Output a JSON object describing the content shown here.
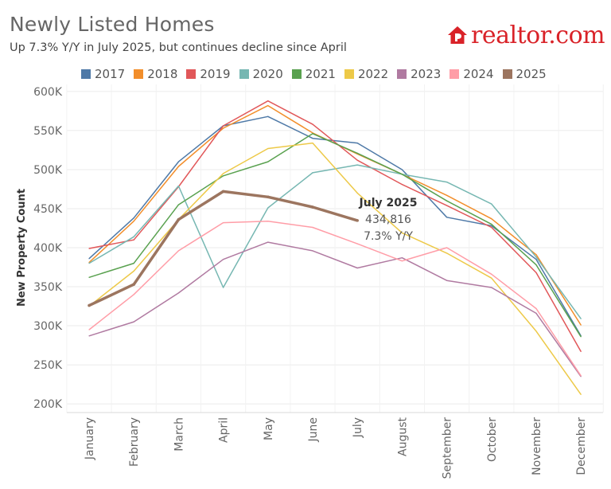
{
  "header": {
    "title": "Newly Listed Homes",
    "subtitle": "Up 7.3% Y/Y in July 2025, but continues decline since April",
    "logo_text": "realtor.com"
  },
  "colors": {
    "brand": "#d92228"
  },
  "chart_data": {
    "type": "line",
    "ylabel": "New Property Count",
    "ylim": [
      200000,
      600000
    ],
    "yticks": [
      {
        "value": 200000,
        "label": "200K"
      },
      {
        "value": 250000,
        "label": "250K"
      },
      {
        "value": 300000,
        "label": "300K"
      },
      {
        "value": 350000,
        "label": "350K"
      },
      {
        "value": 400000,
        "label": "400K"
      },
      {
        "value": 450000,
        "label": "450K"
      },
      {
        "value": 500000,
        "label": "500K"
      },
      {
        "value": 550000,
        "label": "550K"
      },
      {
        "value": 600000,
        "label": "600K"
      }
    ],
    "categories": [
      "January",
      "February",
      "March",
      "April",
      "May",
      "June",
      "July",
      "August",
      "September",
      "October",
      "November",
      "December"
    ],
    "series": [
      {
        "name": "2017",
        "color": "#4e79a7",
        "values": [
          386000,
          438000,
          510000,
          556000,
          568000,
          540000,
          534000,
          500000,
          439000,
          428000,
          385000,
          287000
        ]
      },
      {
        "name": "2018",
        "color": "#f28e2b",
        "values": [
          381000,
          434000,
          504000,
          553000,
          582000,
          547000,
          520000,
          494000,
          467000,
          437000,
          391000,
          301000
        ]
      },
      {
        "name": "2019",
        "color": "#e15759",
        "values": [
          399000,
          410000,
          478000,
          556000,
          588000,
          558000,
          512000,
          481000,
          454000,
          426000,
          368000,
          267000
        ]
      },
      {
        "name": "2020",
        "color": "#76b7b2",
        "values": [
          380000,
          414000,
          479000,
          349000,
          451000,
          496000,
          506000,
          494000,
          484000,
          456000,
          388000,
          309000
        ]
      },
      {
        "name": "2021",
        "color": "#59a14f",
        "values": [
          362000,
          380000,
          455000,
          492000,
          510000,
          546000,
          521000,
          494000,
          460000,
          430000,
          378000,
          286000
        ]
      },
      {
        "name": "2022",
        "color": "#edc948",
        "values": [
          325000,
          370000,
          436000,
          495000,
          527000,
          534000,
          470000,
          419000,
          393000,
          361000,
          293000,
          212000
        ]
      },
      {
        "name": "2023",
        "color": "#b07aa1",
        "values": [
          287000,
          305000,
          342000,
          385000,
          407000,
          396000,
          374000,
          387000,
          358000,
          349000,
          316000,
          235000
        ]
      },
      {
        "name": "2024",
        "color": "#ff9da7",
        "values": [
          295000,
          340000,
          396000,
          432000,
          434000,
          426000,
          405000,
          383000,
          400000,
          366000,
          322000,
          236000
        ]
      },
      {
        "name": "2025",
        "color": "#9c755f",
        "values": [
          326000,
          353000,
          436000,
          472000,
          465000,
          452000,
          434816,
          null,
          null,
          null,
          null,
          null
        ]
      }
    ],
    "annotation": {
      "title": "July 2025",
      "value": "434,816",
      "change": "7.3% Y/Y"
    }
  }
}
